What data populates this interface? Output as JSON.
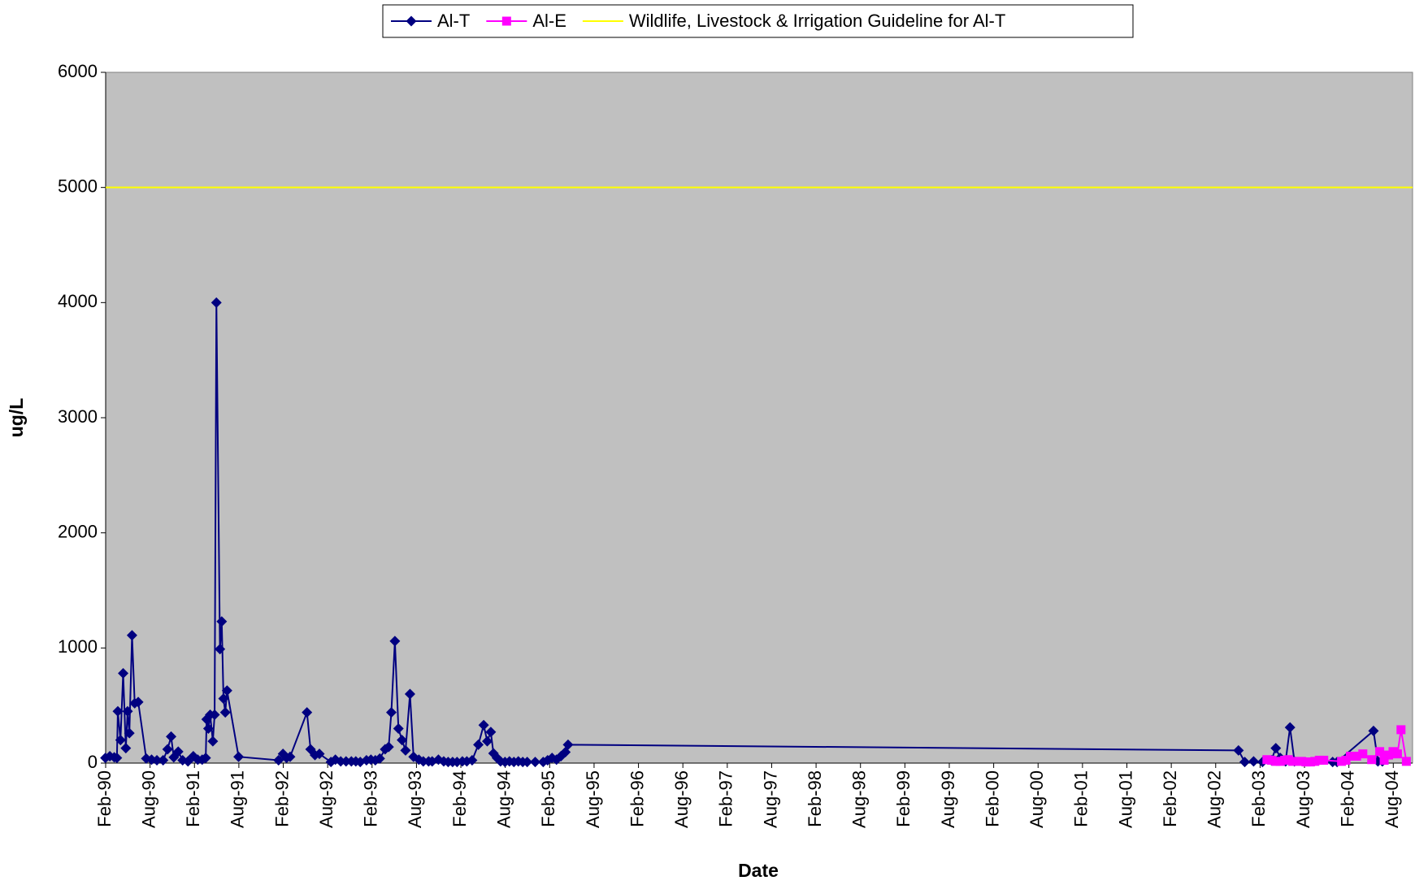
{
  "chart_data": {
    "type": "line",
    "x_label": "Date",
    "y_label": "ug/L",
    "xlim": [
      1990.083,
      2004.8
    ],
    "ylim": [
      0,
      6000
    ],
    "yticks": [
      0,
      1000,
      2000,
      3000,
      4000,
      5000,
      6000
    ],
    "xticks": [
      {
        "value": 1990.083,
        "label": "Feb-90"
      },
      {
        "value": 1990.583,
        "label": "Aug-90"
      },
      {
        "value": 1991.083,
        "label": "Feb-91"
      },
      {
        "value": 1991.583,
        "label": "Aug-91"
      },
      {
        "value": 1992.083,
        "label": "Feb-92"
      },
      {
        "value": 1992.583,
        "label": "Aug-92"
      },
      {
        "value": 1993.083,
        "label": "Feb-93"
      },
      {
        "value": 1993.583,
        "label": "Aug-93"
      },
      {
        "value": 1994.083,
        "label": "Feb-94"
      },
      {
        "value": 1994.583,
        "label": "Aug-94"
      },
      {
        "value": 1995.083,
        "label": "Feb-95"
      },
      {
        "value": 1995.583,
        "label": "Aug-95"
      },
      {
        "value": 1996.083,
        "label": "Feb-96"
      },
      {
        "value": 1996.583,
        "label": "Aug-96"
      },
      {
        "value": 1997.083,
        "label": "Feb-97"
      },
      {
        "value": 1997.583,
        "label": "Aug-97"
      },
      {
        "value": 1998.083,
        "label": "Feb-98"
      },
      {
        "value": 1998.583,
        "label": "Aug-98"
      },
      {
        "value": 1999.083,
        "label": "Feb-99"
      },
      {
        "value": 1999.583,
        "label": "Aug-99"
      },
      {
        "value": 2000.083,
        "label": "Feb-00"
      },
      {
        "value": 2000.583,
        "label": "Aug-00"
      },
      {
        "value": 2001.083,
        "label": "Feb-01"
      },
      {
        "value": 2001.583,
        "label": "Aug-01"
      },
      {
        "value": 2002.083,
        "label": "Feb-02"
      },
      {
        "value": 2002.583,
        "label": "Aug-02"
      },
      {
        "value": 2003.083,
        "label": "Feb-03"
      },
      {
        "value": 2003.583,
        "label": "Aug-03"
      },
      {
        "value": 2004.083,
        "label": "Feb-04"
      },
      {
        "value": 2004.583,
        "label": "Aug-04"
      }
    ],
    "plot_background": "#c0c0c0",
    "series": [
      {
        "name": "Al-T",
        "color": "#000080",
        "marker": "diamond",
        "x": [
          1990.08,
          1990.13,
          1990.18,
          1990.21,
          1990.22,
          1990.25,
          1990.28,
          1990.31,
          1990.33,
          1990.35,
          1990.38,
          1990.41,
          1990.45,
          1990.54,
          1990.6,
          1990.66,
          1990.73,
          1990.78,
          1990.82,
          1990.85,
          1990.9,
          1990.95,
          1991.01,
          1991.07,
          1991.12,
          1991.17,
          1991.21,
          1991.22,
          1991.24,
          1991.26,
          1991.29,
          1991.31,
          1991.33,
          1991.37,
          1991.39,
          1991.41,
          1991.43,
          1991.45,
          1991.58,
          1992.03,
          1992.08,
          1992.12,
          1992.16,
          1992.35,
          1992.39,
          1992.44,
          1992.49,
          1992.62,
          1992.67,
          1992.73,
          1992.79,
          1992.85,
          1992.9,
          1992.95,
          1993.02,
          1993.07,
          1993.12,
          1993.17,
          1993.23,
          1993.27,
          1993.3,
          1993.34,
          1993.38,
          1993.42,
          1993.46,
          1993.51,
          1993.55,
          1993.61,
          1993.66,
          1993.72,
          1993.76,
          1993.83,
          1993.89,
          1993.94,
          1993.99,
          1994.04,
          1994.1,
          1994.15,
          1994.21,
          1994.28,
          1994.34,
          1994.38,
          1994.42,
          1994.45,
          1994.49,
          1994.53,
          1994.58,
          1994.63,
          1994.68,
          1994.73,
          1994.78,
          1994.83,
          1994.92,
          1995.01,
          1995.06,
          1995.11,
          1995.16,
          1995.21,
          1995.26,
          1995.29,
          2002.84,
          2002.91,
          2003.01,
          2003.11,
          2003.21,
          2003.26,
          2003.31,
          2003.37,
          2003.42,
          2003.47,
          2003.9,
          2003.95,
          2004.36,
          2004.41,
          2004.46
        ],
        "values": [
          45,
          60,
          50,
          45,
          450,
          200,
          780,
          130,
          450,
          260,
          1110,
          520,
          530,
          40,
          30,
          25,
          25,
          120,
          230,
          50,
          100,
          25,
          15,
          60,
          30,
          30,
          45,
          380,
          300,
          420,
          190,
          420,
          4000,
          990,
          1230,
          560,
          440,
          630,
          55,
          25,
          80,
          45,
          55,
          440,
          120,
          70,
          80,
          10,
          30,
          15,
          15,
          15,
          15,
          10,
          25,
          30,
          25,
          40,
          120,
          140,
          440,
          1060,
          300,
          200,
          110,
          600,
          55,
          30,
          15,
          15,
          15,
          30,
          15,
          10,
          10,
          10,
          15,
          15,
          25,
          160,
          330,
          190,
          270,
          85,
          45,
          15,
          10,
          15,
          10,
          15,
          10,
          10,
          10,
          10,
          25,
          45,
          30,
          60,
          95,
          160,
          110,
          10,
          15,
          10,
          25,
          130,
          45,
          15,
          310,
          15,
          10,
          10,
          280,
          15,
          15
        ]
      },
      {
        "name": "Al-E",
        "color": "#ff00ff",
        "marker": "square",
        "x": [
          2003.16,
          2003.21,
          2003.26,
          2003.31,
          2003.36,
          2003.4,
          2003.45,
          2003.55,
          2003.6,
          2003.65,
          2003.7,
          2003.75,
          2003.8,
          2004.0,
          2004.05,
          2004.1,
          2004.17,
          2004.24,
          2004.34,
          2004.43,
          2004.48,
          2004.53,
          2004.58,
          2004.63,
          2004.67,
          2004.73
        ],
        "values": [
          30,
          25,
          15,
          15,
          25,
          30,
          15,
          15,
          10,
          10,
          15,
          25,
          25,
          15,
          25,
          60,
          60,
          80,
          30,
          100,
          25,
          70,
          100,
          80,
          290,
          15
        ]
      }
    ],
    "guideline": {
      "name": "Wildlife, Livestock & Irrigation Guideline for Al-T",
      "color": "#ffff00",
      "value": 5000
    }
  }
}
